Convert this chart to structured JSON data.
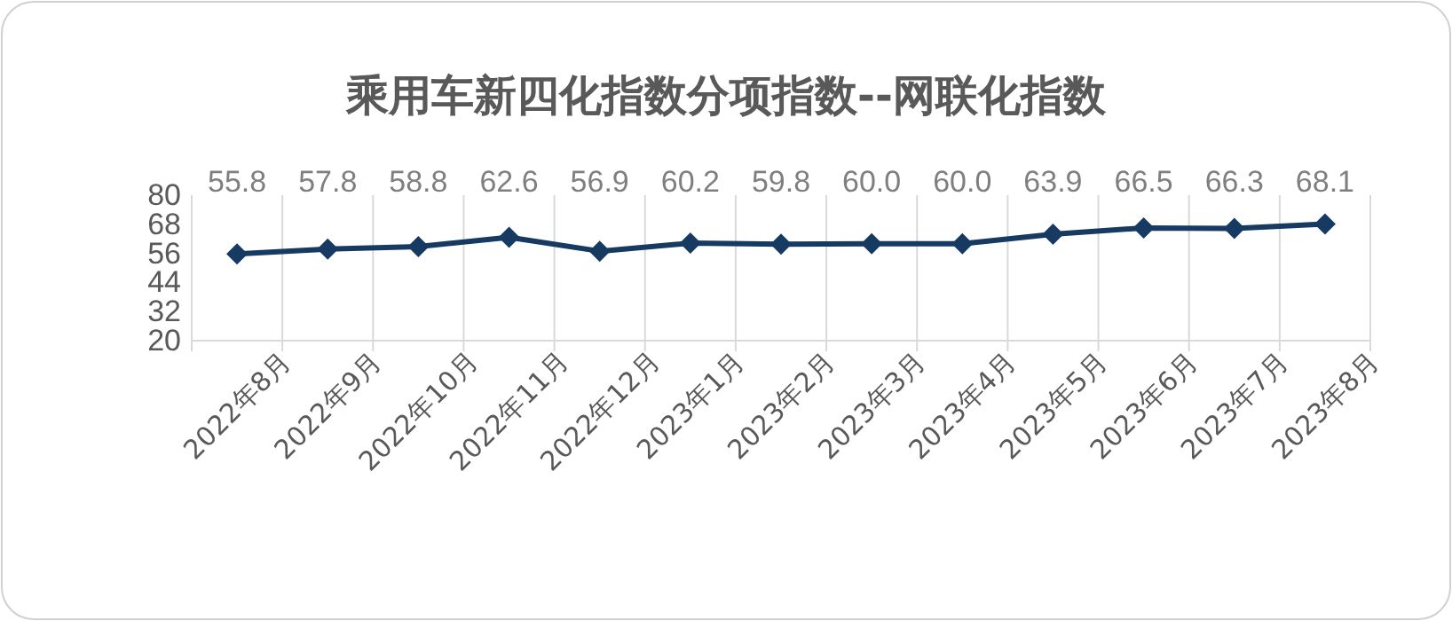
{
  "chart_data": {
    "type": "line",
    "title": "乘用车新四化指数分项指数--网联化指数",
    "categories": [
      "2022年8月",
      "2022年9月",
      "2022年10月",
      "2022年11月",
      "2022年12月",
      "2023年1月",
      "2023年2月",
      "2023年3月",
      "2023年4月",
      "2023年5月",
      "2023年6月",
      "2023年7月",
      "2023年8月"
    ],
    "series": [
      {
        "color": "#173a63",
        "values": [
          55.8,
          57.8,
          58.8,
          62.6,
          56.9,
          60.2,
          59.8,
          60.0,
          60.0,
          63.9,
          66.5,
          66.3,
          68.1
        ]
      }
    ],
    "value_labels": [
      "55.8",
      "57.8",
      "58.8",
      "62.6",
      "56.9",
      "60.2",
      "59.8",
      "60.0",
      "60.0",
      "63.9",
      "66.5",
      "66.3",
      "68.1"
    ],
    "ylim": [
      20,
      80
    ],
    "yticks": [
      20,
      32,
      44,
      56,
      68,
      80
    ],
    "grid": "x",
    "marker": "diamond",
    "line_style": "solid"
  }
}
